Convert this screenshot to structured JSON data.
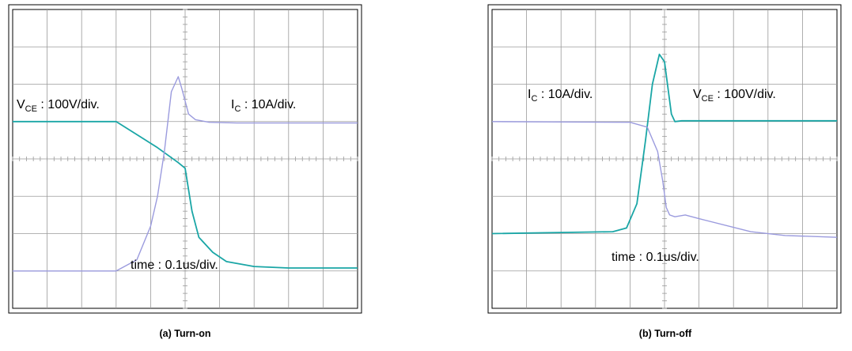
{
  "colors": {
    "vce_trace": "#1aa6a6",
    "ic_trace": "#9b9bde",
    "grid": "#9a9a9a",
    "frame": "#000000"
  },
  "chart_data": [
    {
      "type": "line",
      "caption": "(a) Turn-on",
      "grid": true,
      "divisions": {
        "x": 10,
        "y": 8
      },
      "annotations": {
        "vce_main": "V",
        "vce_sub": "CE",
        "vce_rest": " : 100V/div.",
        "ic_main": "I",
        "ic_sub": "C",
        "ic_rest": " : 10A/div.",
        "time": "time : 0.1us/div."
      },
      "series": [
        {
          "name": "VCE",
          "x": [
            0,
            3.0,
            3.6,
            4.2,
            4.8,
            5.0,
            5.2,
            5.4,
            5.8,
            6.2,
            7.0,
            8.0,
            10.0
          ],
          "y": [
            1.0,
            1.0,
            0.65,
            0.3,
            -0.1,
            -0.25,
            -1.4,
            -2.1,
            -2.5,
            -2.75,
            -2.88,
            -2.92,
            -2.92
          ]
        },
        {
          "name": "IC",
          "x": [
            0,
            3.0,
            3.6,
            4.0,
            4.2,
            4.4,
            4.6,
            4.8,
            4.9,
            5.1,
            5.3,
            5.7,
            6.5,
            10.0
          ],
          "y": [
            -3.0,
            -3.0,
            -2.7,
            -1.8,
            -1.0,
            0.2,
            1.8,
            2.2,
            1.9,
            1.2,
            1.05,
            0.98,
            0.96,
            0.96
          ]
        }
      ]
    },
    {
      "type": "line",
      "caption": "(b) Turn-off",
      "grid": true,
      "divisions": {
        "x": 10,
        "y": 8
      },
      "annotations": {
        "vce_main": "V",
        "vce_sub": "CE",
        "vce_rest": " : 100V/div.",
        "ic_main": "I",
        "ic_sub": "C",
        "ic_rest": " : 10A/div.",
        "time": "time : 0.1us/div."
      },
      "series": [
        {
          "name": "VCE",
          "x": [
            0,
            3.5,
            3.9,
            4.2,
            4.45,
            4.65,
            4.85,
            5.0,
            5.2,
            5.3,
            5.5,
            10.0
          ],
          "y": [
            -2.0,
            -1.95,
            -1.85,
            -1.2,
            0.5,
            2.0,
            2.8,
            2.6,
            1.2,
            1.0,
            1.02,
            1.02
          ]
        },
        {
          "name": "IC",
          "x": [
            0,
            4.0,
            4.5,
            4.8,
            4.95,
            5.05,
            5.15,
            5.3,
            5.6,
            6.0,
            7.5,
            8.5,
            10.0
          ],
          "y": [
            1.0,
            0.98,
            0.85,
            0.2,
            -0.6,
            -1.3,
            -1.5,
            -1.55,
            -1.5,
            -1.6,
            -1.95,
            -2.05,
            -2.1
          ]
        }
      ]
    }
  ]
}
